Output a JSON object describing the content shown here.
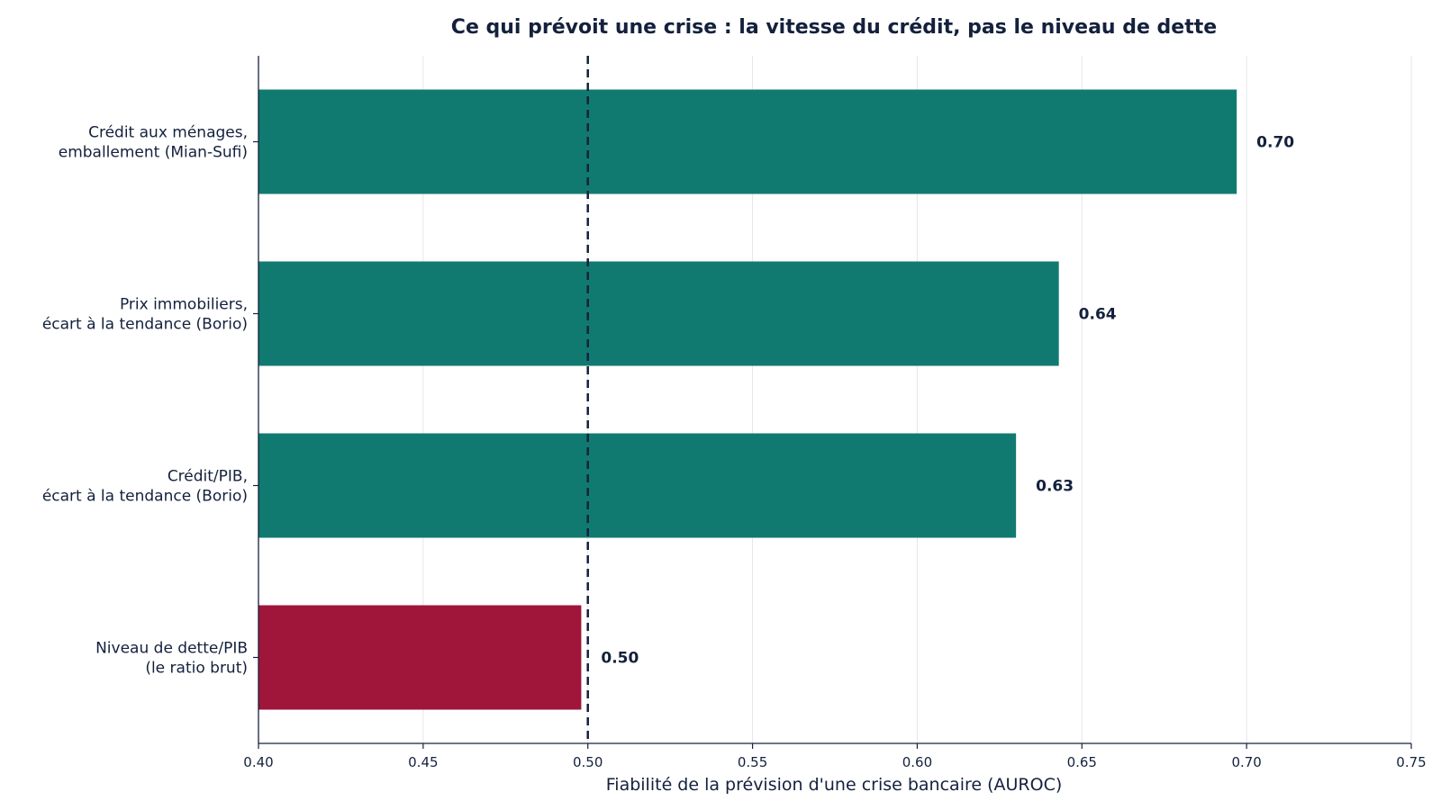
{
  "chart_data": {
    "type": "bar",
    "orientation": "horizontal",
    "title": "Ce qui prévoit une crise : la vitesse du crédit, pas le niveau de dette",
    "xlabel": "Fiabilité de la prévision d'une crise bancaire (AUROC)",
    "ylabel": "",
    "xlim": [
      0.4,
      0.75
    ],
    "xticks": [
      "0.40",
      "0.45",
      "0.50",
      "0.55",
      "0.60",
      "0.65",
      "0.70",
      "0.75"
    ],
    "grid": "vertical",
    "reference_line": 0.5,
    "categories": [
      [
        "Crédit aux ménages,",
        "emballement (Mian-Sufi)"
      ],
      [
        "Prix immobiliers,",
        "écart à la tendance (Borio)"
      ],
      [
        "Crédit/PIB,",
        "écart à la tendance (Borio)"
      ],
      [
        "Niveau de dette/PIB",
        "(le ratio brut)"
      ]
    ],
    "values": [
      0.697,
      0.643,
      0.63,
      0.498
    ],
    "value_labels": [
      "0.70",
      "0.64",
      "0.63",
      "0.50"
    ],
    "colors": [
      "#117a70",
      "#117a70",
      "#117a70",
      "#a0153a"
    ]
  }
}
